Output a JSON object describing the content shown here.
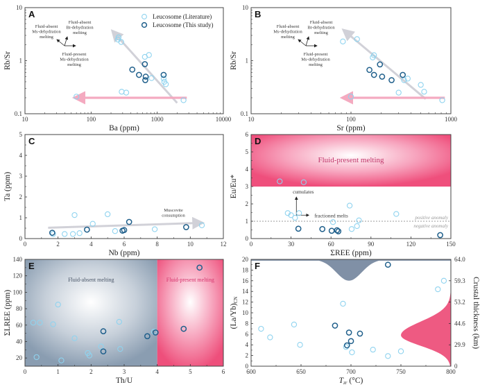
{
  "colors": {
    "literature": "#8fd3ef",
    "this_study": "#1f5f8b",
    "trend_gray": "#cfcfd6",
    "trend_pink": "#f4a6bd",
    "fluid_present": "#f0527d",
    "fluid_absent": "#8d9fb2",
    "gray_curve": "#8090a6",
    "pink_curve": "#ee5a82"
  },
  "legend": {
    "literature": "Leucosome (Literature)",
    "this_study": "Leucosome (This study)"
  },
  "chart_data": [
    {
      "panel": "A",
      "type": "scatter",
      "xlabel": "Ba (ppm)",
      "ylabel": "Rb/Sr",
      "xscale": "log",
      "yscale": "log",
      "xlim": [
        10,
        10000
      ],
      "ylim": [
        0.1,
        10
      ],
      "xticks": [
        "10",
        "100",
        "1000",
        "10000"
      ],
      "yticks": [
        "0.1",
        "1",
        "10"
      ],
      "legend_position": "top-right",
      "series": [
        {
          "name": "Leucosome (Literature)",
          "points": [
            [
              60,
              0.21
            ],
            [
              255,
              2.5
            ],
            [
              260,
              2.75
            ],
            [
              285,
              2.25
            ],
            [
              290,
              0.26
            ],
            [
              340,
              0.25
            ],
            [
              650,
              1.18
            ],
            [
              750,
              1.28
            ],
            [
              820,
              0.47
            ],
            [
              1250,
              0.46
            ],
            [
              1280,
              0.4
            ],
            [
              1350,
              0.36
            ],
            [
              2500,
              0.18
            ]
          ]
        },
        {
          "name": "Leucosome (This study)",
          "points": [
            [
              420,
              0.68
            ],
            [
              530,
              0.54
            ],
            [
              650,
              0.86
            ],
            [
              670,
              0.5
            ],
            [
              660,
              0.43
            ],
            [
              1250,
              0.54
            ]
          ]
        }
      ],
      "trends": [
        {
          "color": "gray",
          "from": [
            2000,
            0.16
          ],
          "to": [
            230,
            3.2
          ]
        },
        {
          "color": "pink",
          "from": [
            2800,
            0.2
          ],
          "to": [
            65,
            0.2
          ]
        }
      ],
      "annotations": [
        {
          "text": [
            "Fluid-absent",
            "Ms-dehydration",
            "melting"
          ]
        },
        {
          "text": [
            "Fluid-absent",
            "Bt-dehydration",
            "melting"
          ]
        },
        {
          "text": [
            "Fluid-present",
            "Ms-dehydration",
            "melting"
          ]
        }
      ]
    },
    {
      "panel": "B",
      "type": "scatter",
      "xlabel": "Sr (ppm)",
      "ylabel": "Rb/Sr",
      "xscale": "log",
      "yscale": "log",
      "xlim": [
        10,
        1000
      ],
      "ylim": [
        0.1,
        10
      ],
      "xticks": [
        "10",
        "100",
        "1000"
      ],
      "yticks": [
        "0.1",
        "1",
        "10"
      ],
      "series": [
        {
          "name": "Leucosome (Literature)",
          "points": [
            [
              83,
              2.3
            ],
            [
              100,
              0.21
            ],
            [
              115,
              2.55
            ],
            [
              165,
              1.15
            ],
            [
              170,
              1.27
            ],
            [
              300,
              0.25
            ],
            [
              340,
              0.43
            ],
            [
              370,
              0.46
            ],
            [
              500,
              0.35
            ],
            [
              540,
              0.26
            ],
            [
              820,
              0.18
            ]
          ]
        },
        {
          "name": "Leucosome (This study)",
          "points": [
            [
              153,
              0.67
            ],
            [
              170,
              0.54
            ],
            [
              195,
              0.85
            ],
            [
              205,
              0.5
            ],
            [
              255,
              0.43
            ],
            [
              330,
              0.54
            ]
          ]
        }
      ],
      "trends": [
        {
          "color": "gray",
          "from": [
            560,
            0.19
          ],
          "to": [
            90,
            3.4
          ]
        },
        {
          "color": "pink",
          "from": [
            870,
            0.2
          ],
          "to": [
            90,
            0.2
          ]
        }
      ],
      "annotations": [
        {
          "text": [
            "Fluid-absent",
            "Ms-dehydration",
            "melting"
          ]
        },
        {
          "text": [
            "Fluid-absent",
            "Bt-dehydration",
            "melting"
          ]
        },
        {
          "text": [
            "Fluid-present",
            "Ms-dehydration",
            "melting"
          ]
        }
      ]
    },
    {
      "panel": "C",
      "type": "scatter",
      "xlabel": "Nb (ppm)",
      "ylabel": "Ta (ppm)",
      "xlim": [
        0,
        12
      ],
      "ylim": [
        0,
        5
      ],
      "xticks": [
        "0",
        "2",
        "4",
        "6",
        "8",
        "10",
        "12"
      ],
      "yticks": [
        "0",
        "1",
        "2",
        "3",
        "4",
        "5"
      ],
      "series": [
        {
          "name": "Leucosome (Literature)",
          "points": [
            [
              1.7,
              0.22
            ],
            [
              2.4,
              0.22
            ],
            [
              2.9,
              0.22
            ],
            [
              3.0,
              1.13
            ],
            [
              3.3,
              0.26
            ],
            [
              4.1,
              0.71
            ],
            [
              5.0,
              1.17
            ],
            [
              5.45,
              0.36
            ],
            [
              7.85,
              0.45
            ],
            [
              10.7,
              0.64
            ]
          ]
        },
        {
          "name": "Leucosome (This study)",
          "points": [
            [
              1.65,
              0.28
            ],
            [
              3.75,
              0.43
            ],
            [
              5.9,
              0.38
            ],
            [
              6.0,
              0.41
            ],
            [
              6.3,
              0.8
            ],
            [
              9.75,
              0.55
            ]
          ]
        }
      ],
      "trends": [
        {
          "color": "gray",
          "from": [
            1.4,
            0.52
          ],
          "to": [
            10.5,
            0.75
          ]
        }
      ],
      "annotations": [
        {
          "text": [
            "Muscovite",
            "consumption"
          ]
        }
      ]
    },
    {
      "panel": "D",
      "type": "scatter",
      "xlabel": "ΣREE (ppm)",
      "ylabel": "Eu/Eu*",
      "xlim": [
        0,
        150
      ],
      "ylim": [
        0,
        6
      ],
      "xticks": [
        "0",
        "30",
        "60",
        "90",
        "120",
        "150"
      ],
      "yticks": [
        "0",
        "1",
        "2",
        "3",
        "4",
        "5",
        "6"
      ],
      "regions": [
        {
          "label": "Fluid-present melting",
          "y_from": 3,
          "y_to": 6
        }
      ],
      "reference_line": {
        "y": 1,
        "above_label": "positive anomaly",
        "below_label": "negative anomaly"
      },
      "series": [
        {
          "name": "Leucosome (Literature)",
          "points": [
            [
              21.5,
              3.3
            ],
            [
              39.5,
              3.25
            ],
            [
              27.5,
              1.47
            ],
            [
              30,
              1.35
            ],
            [
              33,
              1.2
            ],
            [
              36,
              1.47
            ],
            [
              61.5,
              0.95
            ],
            [
              74,
              1.9
            ],
            [
              75.5,
              0.55
            ],
            [
              79.5,
              0.72
            ],
            [
              81,
              1.05
            ],
            [
              109,
              1.42
            ]
          ]
        },
        {
          "name": "Leucosome (This study)",
          "points": [
            [
              35.5,
              0.57
            ],
            [
              53.5,
              0.55
            ],
            [
              60.5,
              0.45
            ],
            [
              64.5,
              0.48
            ],
            [
              65.5,
              0.42
            ],
            [
              142,
              0.2
            ]
          ]
        }
      ],
      "annotations": [
        {
          "text": "cumulates"
        },
        {
          "text": "fractioned melts"
        }
      ]
    },
    {
      "panel": "E",
      "type": "scatter",
      "xlabel": "Th/U",
      "ylabel": "ΣLREE (ppm)",
      "xlim": [
        0,
        6
      ],
      "ylim": [
        10,
        140
      ],
      "xticks": [
        "0",
        "1",
        "2",
        "3",
        "4",
        "5",
        "6"
      ],
      "yticks": [
        "20",
        "40",
        "60",
        "80",
        "100",
        "120",
        "140"
      ],
      "regions": [
        {
          "label": "Fluid-absent melting",
          "x_from": 0,
          "x_to": 4
        },
        {
          "label": "Fluid-present melting",
          "x_from": 4,
          "x_to": 6
        }
      ],
      "series": [
        {
          "name": "Leucosome (Literature)",
          "points": [
            [
              0.25,
              63
            ],
            [
              0.35,
              21
            ],
            [
              0.45,
              63
            ],
            [
              0.85,
              61
            ],
            [
              1.0,
              85
            ],
            [
              1.1,
              17
            ],
            [
              1.5,
              44
            ],
            [
              1.9,
              26
            ],
            [
              1.95,
              23
            ],
            [
              2.3,
              34
            ],
            [
              2.85,
              64
            ],
            [
              2.88,
              31
            ],
            [
              3.9,
              52
            ]
          ]
        },
        {
          "name": "Leucosome (This study)",
          "points": [
            [
              2.37,
              52.5
            ],
            [
              2.37,
              28
            ],
            [
              3.7,
              46.5
            ],
            [
              3.95,
              51
            ],
            [
              4.8,
              55.5
            ],
            [
              5.28,
              130
            ]
          ]
        }
      ]
    },
    {
      "panel": "F",
      "type": "scatter",
      "xlabel": "T_zr (°C)",
      "ylabel": "(La/Yb)_CN",
      "ylabel_right": "Crustal thickness (km)",
      "xlim": [
        600,
        800
      ],
      "ylim": [
        0,
        20
      ],
      "xticks": [
        "600",
        "650",
        "700",
        "750",
        "800"
      ],
      "yticks": [
        "0",
        "2",
        "4",
        "6",
        "8",
        "10",
        "12",
        "14",
        "16",
        "18",
        "20"
      ],
      "right_ticks": [
        {
          "y": 0,
          "label": "0"
        },
        {
          "y": 4,
          "label": "29.9"
        },
        {
          "y": 8,
          "label": "44.6"
        },
        {
          "y": 12,
          "label": "53.2"
        },
        {
          "y": 16,
          "label": "59.3"
        },
        {
          "y": 20,
          "label": "64.0"
        }
      ],
      "distributions": [
        {
          "color": "gray",
          "axis": "x",
          "peak_x": 698,
          "depth_to_y": 16,
          "baseline_y": 20
        },
        {
          "color": "pink",
          "axis": "y",
          "peak_y": 5.8,
          "extent_x": 750,
          "baseline_x": 800
        }
      ],
      "series": [
        {
          "name": "Leucosome (Literature)",
          "points": [
            [
              610,
              7
            ],
            [
              619,
              5.4
            ],
            [
              643,
              7.8
            ],
            [
              649,
              4
            ],
            [
              692,
              11.7
            ],
            [
              695,
              3.6
            ],
            [
              701,
              2.6
            ],
            [
              722,
              3.1
            ],
            [
              737,
              1.9
            ],
            [
              750,
              2.8
            ],
            [
              787,
              14.4
            ],
            [
              793,
              16
            ]
          ]
        },
        {
          "name": "Leucosome (This study)",
          "points": [
            [
              684,
              7.6
            ],
            [
              696,
              3.9
            ],
            [
              698,
              6.3
            ],
            [
              700,
              4.7
            ],
            [
              709,
              6.1
            ],
            [
              737,
              19
            ]
          ]
        }
      ]
    }
  ]
}
